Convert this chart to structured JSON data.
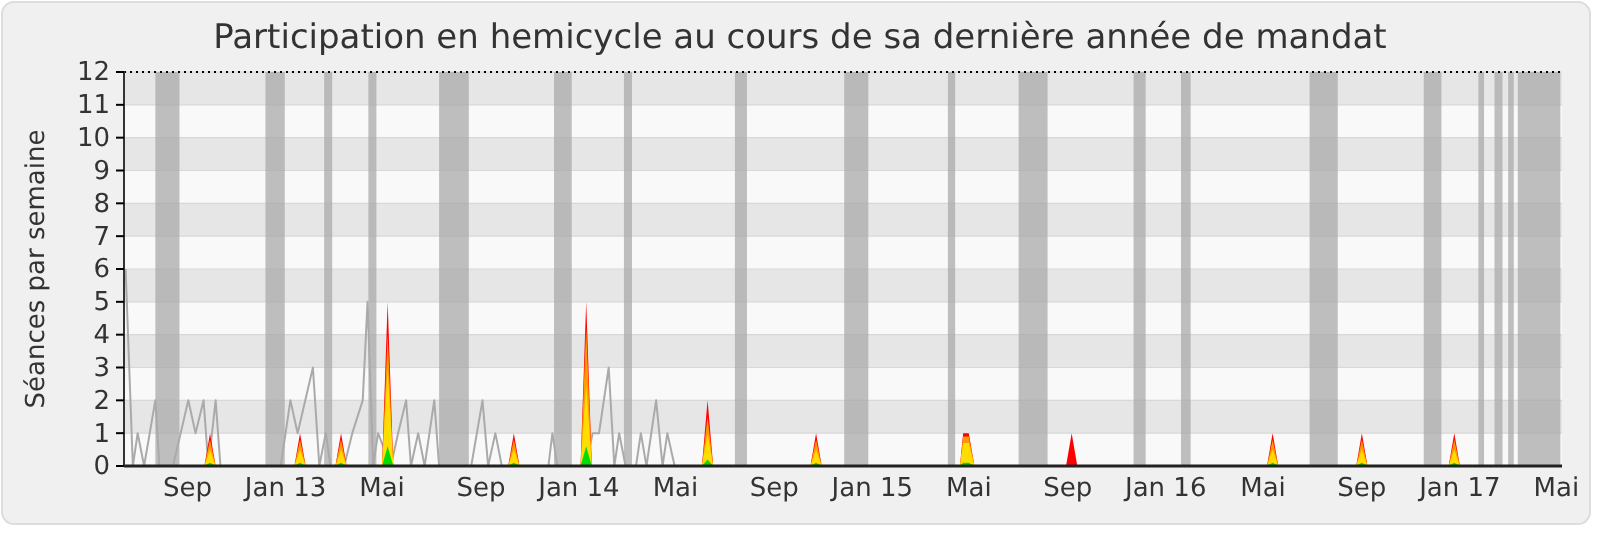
{
  "chart_data": {
    "type": "area",
    "title": "Participation en hemicycle au cours de sa dernière année de mandat",
    "ylabel": "Séances par semaine",
    "xlim": [
      "2012-06-14",
      "2017-05-08"
    ],
    "xticks": [
      {
        "value": "2012-09-01",
        "label": "Sep"
      },
      {
        "value": "2013-01-01",
        "label": "Jan 13"
      },
      {
        "value": "2013-05-01",
        "label": "Mai"
      },
      {
        "value": "2013-09-01",
        "label": "Sep"
      },
      {
        "value": "2014-01-01",
        "label": "Jan 14"
      },
      {
        "value": "2014-05-01",
        "label": "Mai"
      },
      {
        "value": "2014-09-01",
        "label": "Sep"
      },
      {
        "value": "2015-01-01",
        "label": "Jan 15"
      },
      {
        "value": "2015-05-01",
        "label": "Mai"
      },
      {
        "value": "2015-09-01",
        "label": "Sep"
      },
      {
        "value": "2016-01-01",
        "label": "Jan 16"
      },
      {
        "value": "2016-05-01",
        "label": "Mai"
      },
      {
        "value": "2016-09-01",
        "label": "Sep"
      },
      {
        "value": "2017-01-01",
        "label": "Jan 17"
      },
      {
        "value": "2017-05-01",
        "label": "Mai"
      }
    ],
    "ylim": [
      0,
      12
    ],
    "yticks": [
      0,
      1,
      2,
      3,
      4,
      5,
      6,
      7,
      8,
      9,
      10,
      11,
      12
    ],
    "grid": "y",
    "bands": [
      {
        "axis": "x",
        "from": "2012-07-23",
        "to": "2012-08-22",
        "color": "#aaaaaa"
      },
      {
        "axis": "x",
        "from": "2012-12-07",
        "to": "2012-12-31",
        "color": "#aaaaaa"
      },
      {
        "axis": "x",
        "from": "2013-02-18",
        "to": "2013-02-28",
        "color": "#aaaaaa"
      },
      {
        "axis": "x",
        "from": "2013-04-14",
        "to": "2013-04-24",
        "color": "#aaaaaa"
      },
      {
        "axis": "x",
        "from": "2013-07-11",
        "to": "2013-08-17",
        "color": "#aaaaaa"
      },
      {
        "axis": "x",
        "from": "2013-12-01",
        "to": "2013-12-23",
        "color": "#aaaaaa"
      },
      {
        "axis": "x",
        "from": "2014-02-26",
        "to": "2014-03-08",
        "color": "#aaaaaa"
      },
      {
        "axis": "x",
        "from": "2014-07-14",
        "to": "2014-07-29",
        "color": "#aaaaaa"
      },
      {
        "axis": "x",
        "from": "2014-11-27",
        "to": "2014-12-27",
        "color": "#aaaaaa"
      },
      {
        "axis": "x",
        "from": "2015-04-05",
        "to": "2015-04-14",
        "color": "#aaaaaa"
      },
      {
        "axis": "x",
        "from": "2015-07-02",
        "to": "2015-08-07",
        "color": "#aaaaaa"
      },
      {
        "axis": "x",
        "from": "2015-11-22",
        "to": "2015-12-07",
        "color": "#aaaaaa"
      },
      {
        "axis": "x",
        "from": "2016-01-20",
        "to": "2016-02-01",
        "color": "#aaaaaa"
      },
      {
        "axis": "x",
        "from": "2016-06-28",
        "to": "2016-08-02",
        "color": "#aaaaaa"
      },
      {
        "axis": "x",
        "from": "2016-11-17",
        "to": "2016-12-09",
        "color": "#aaaaaa"
      },
      {
        "axis": "x",
        "from": "2017-01-24",
        "to": "2017-01-31",
        "color": "#aaaaaa"
      },
      {
        "axis": "x",
        "from": "2017-02-13",
        "to": "2017-02-23",
        "color": "#aaaaaa"
      },
      {
        "axis": "x",
        "from": "2017-03-02",
        "to": "2017-03-09",
        "color": "#aaaaaa"
      },
      {
        "axis": "x",
        "from": "2017-03-14",
        "to": "2017-05-06",
        "color": "#aaaaaa"
      }
    ],
    "series": [
      {
        "type": "line",
        "color": "#aaaaaa",
        "x": [
          "2012-06-16",
          "2012-06-25",
          "2012-07-01",
          "2012-07-09",
          "2012-07-23",
          "2012-07-28",
          "2012-08-14",
          "2012-09-02",
          "2012-09-11",
          "2012-09-21",
          "2012-09-27",
          "2012-10-06",
          "2012-10-12",
          "2012-12-26",
          "2013-01-07",
          "2013-01-16",
          "2013-02-04",
          "2013-02-12",
          "2013-02-20",
          "2013-02-26",
          "2013-03-15",
          "2013-03-25",
          "2013-04-07",
          "2013-04-13",
          "2013-04-20",
          "2013-04-26",
          "2013-05-12",
          "2013-05-21",
          "2013-05-31",
          "2013-06-06",
          "2013-06-15",
          "2013-06-23",
          "2013-07-05",
          "2013-07-11",
          "2013-08-20",
          "2013-09-03",
          "2013-09-10",
          "2013-09-19",
          "2013-09-27",
          "2013-11-24",
          "2013-11-29",
          "2013-12-05",
          "2014-01-10",
          "2014-01-18",
          "2014-01-26",
          "2014-02-07",
          "2014-02-14",
          "2014-02-20",
          "2014-02-28",
          "2014-03-13",
          "2014-03-19",
          "2014-03-26",
          "2014-04-07",
          "2014-04-15",
          "2014-04-21",
          "2014-04-30"
        ],
        "values": [
          6,
          0,
          1,
          0,
          2,
          0,
          0,
          2,
          1,
          2,
          0,
          2,
          0,
          0,
          2,
          1,
          3,
          0,
          1,
          0,
          0,
          1,
          2,
          5,
          0,
          1,
          0,
          1,
          2,
          0,
          1,
          0,
          2,
          0,
          0,
          2,
          0,
          1,
          0,
          0,
          1,
          0,
          0,
          1,
          1,
          3,
          0,
          1,
          0,
          0,
          1,
          0,
          2,
          0,
          1,
          0
        ]
      },
      {
        "color": "#ff0000",
        "x": [
          "2012-09-22",
          "2012-09-29",
          "2012-10-06",
          "2013-01-12",
          "2013-01-19",
          "2013-01-26",
          "2013-03-04",
          "2013-03-11",
          "2013-03-18",
          "2013-05-01",
          "2013-05-08",
          "2013-05-15",
          "2013-10-05",
          "2013-10-12",
          "2013-10-19",
          "2014-01-03",
          "2014-01-10",
          "2014-01-17",
          "2014-06-03",
          "2014-06-10",
          "2014-06-17",
          "2014-10-16",
          "2014-10-23",
          "2014-10-30",
          "2015-04-20",
          "2015-04-24",
          "2015-05-01",
          "2015-05-08",
          "2015-08-30",
          "2015-09-06",
          "2015-09-13",
          "2016-05-06",
          "2016-05-13",
          "2016-05-20",
          "2016-08-25",
          "2016-09-01",
          "2016-09-08",
          "2016-12-18",
          "2016-12-25",
          "2017-01-01"
        ],
        "values": [
          0,
          1,
          0,
          0,
          1,
          0,
          0,
          1,
          0,
          0,
          5,
          0,
          0,
          1,
          0,
          0,
          5,
          0,
          0,
          2,
          0,
          0,
          1,
          0,
          0,
          1,
          1,
          0,
          0,
          1,
          0,
          0,
          1,
          0,
          0,
          1,
          0,
          0,
          1,
          0
        ]
      },
      {
        "color": "#ff9900",
        "x": [
          "2012-09-22",
          "2012-09-29",
          "2012-10-06",
          "2013-01-12",
          "2013-01-19",
          "2013-01-26",
          "2013-03-04",
          "2013-03-11",
          "2013-03-18",
          "2013-05-01",
          "2013-05-08",
          "2013-05-15",
          "2013-10-05",
          "2013-10-12",
          "2013-10-19",
          "2014-01-03",
          "2014-01-10",
          "2014-01-17",
          "2014-06-03",
          "2014-06-10",
          "2014-06-17",
          "2014-10-16",
          "2014-10-23",
          "2014-10-30",
          "2015-04-20",
          "2015-04-24",
          "2015-05-01",
          "2015-05-08",
          "2015-08-30",
          "2015-09-06",
          "2015-09-13",
          "2016-05-06",
          "2016-05-13",
          "2016-05-20",
          "2016-08-25",
          "2016-09-01",
          "2016-09-08",
          "2016-12-18",
          "2016-12-25",
          "2017-01-01"
        ],
        "values": [
          0,
          0.8,
          0,
          0,
          0.8,
          0,
          0,
          0.8,
          0,
          0,
          4,
          0,
          0,
          0.8,
          0,
          0,
          4.2,
          0,
          0,
          1.5,
          0,
          0,
          0.8,
          0,
          0,
          0.9,
          0.9,
          0,
          0,
          0,
          0,
          0,
          0.8,
          0,
          0,
          0.8,
          0,
          0,
          0.8,
          0
        ]
      },
      {
        "color": "#ffdd00",
        "x": [
          "2012-09-22",
          "2012-09-29",
          "2012-10-06",
          "2013-01-12",
          "2013-01-19",
          "2013-01-26",
          "2013-03-04",
          "2013-03-11",
          "2013-03-18",
          "2013-05-01",
          "2013-05-08",
          "2013-05-15",
          "2013-10-05",
          "2013-10-12",
          "2013-10-19",
          "2014-01-03",
          "2014-01-10",
          "2014-01-17",
          "2014-06-03",
          "2014-06-10",
          "2014-06-17",
          "2014-10-16",
          "2014-10-23",
          "2014-10-30",
          "2015-04-20",
          "2015-04-24",
          "2015-05-01",
          "2015-05-08",
          "2015-08-30",
          "2015-09-06",
          "2015-09-13",
          "2016-05-06",
          "2016-05-13",
          "2016-05-20",
          "2016-08-25",
          "2016-09-01",
          "2016-09-08",
          "2016-12-18",
          "2016-12-25",
          "2017-01-01"
        ],
        "values": [
          0,
          0.5,
          0,
          0,
          0.5,
          0,
          0,
          0.5,
          0,
          0,
          3,
          0,
          0,
          0.5,
          0,
          0,
          2.5,
          0,
          0,
          1,
          0,
          0,
          0.5,
          0,
          0,
          0.7,
          0.7,
          0,
          0,
          0,
          0,
          0,
          0.5,
          0,
          0,
          0.5,
          0,
          0,
          0.5,
          0
        ]
      },
      {
        "color": "#00dd00",
        "x": [
          "2012-09-22",
          "2012-09-29",
          "2012-10-06",
          "2013-01-12",
          "2013-01-19",
          "2013-01-26",
          "2013-03-04",
          "2013-03-11",
          "2013-03-18",
          "2013-05-01",
          "2013-05-08",
          "2013-05-15",
          "2013-10-05",
          "2013-10-12",
          "2013-10-19",
          "2014-01-03",
          "2014-01-10",
          "2014-01-17",
          "2014-06-03",
          "2014-06-10",
          "2014-06-17",
          "2014-10-16",
          "2014-10-23",
          "2014-10-30",
          "2015-04-20",
          "2015-04-24",
          "2015-05-01",
          "2015-05-08",
          "2015-08-30",
          "2015-09-06",
          "2015-09-13",
          "2016-05-06",
          "2016-05-13",
          "2016-05-20",
          "2016-08-25",
          "2016-09-01",
          "2016-09-08",
          "2016-12-18",
          "2016-12-25",
          "2017-01-01"
        ],
        "values": [
          0,
          0.1,
          0,
          0,
          0.1,
          0,
          0,
          0.1,
          0,
          0,
          0.6,
          0,
          0,
          0.1,
          0,
          0,
          0.6,
          0,
          0,
          0.2,
          0,
          0,
          0.1,
          0,
          0,
          0.1,
          0.1,
          0,
          0,
          0,
          0,
          0,
          0.1,
          0,
          0,
          0.1,
          0,
          0,
          0.1,
          0
        ]
      }
    ]
  }
}
